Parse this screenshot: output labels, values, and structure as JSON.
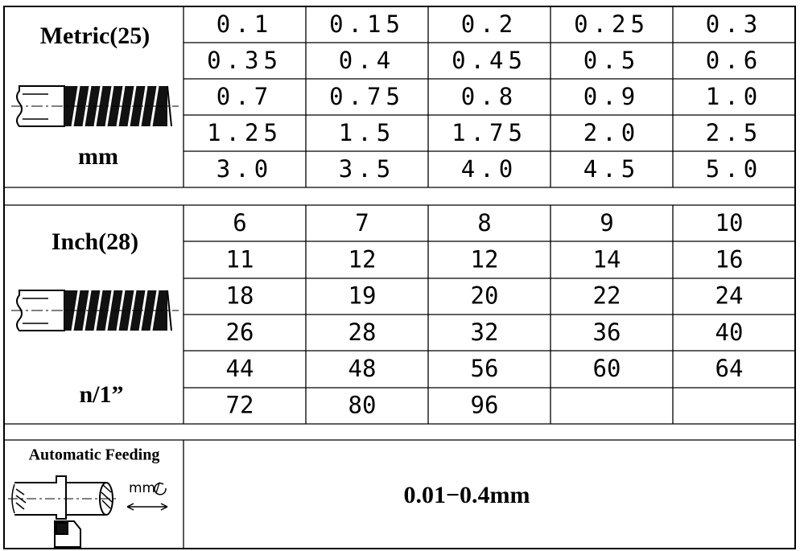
{
  "metric": {
    "label": "Metric(25)",
    "unit": "mm",
    "rows": [
      [
        "0.1",
        "0.15",
        "0.2",
        "0.25",
        "0.3"
      ],
      [
        "0.35",
        "0.4",
        "0.45",
        "0.5",
        "0.6"
      ],
      [
        "0.7",
        "0.75",
        "0.8",
        "0.9",
        "1.0"
      ],
      [
        "1.25",
        "1.5",
        "1.75",
        "2.0",
        "2.5"
      ],
      [
        "3.0",
        "3.5",
        "4.0",
        "4.5",
        "5.0"
      ]
    ]
  },
  "inch": {
    "label": "Inch(28)",
    "unit": "n/1”",
    "rows": [
      [
        "6",
        "7",
        "8",
        "9",
        "10"
      ],
      [
        "11",
        "12",
        "12",
        "14",
        "16"
      ],
      [
        "18",
        "19",
        "20",
        "22",
        "24"
      ],
      [
        "26",
        "28",
        "32",
        "36",
        "40"
      ],
      [
        "44",
        "48",
        "56",
        "60",
        "64"
      ],
      [
        "72",
        "80",
        "96"
      ]
    ]
  },
  "feeding": {
    "label": "Automatic Feeding",
    "icon_label": "mm/",
    "range": "0.01−0.4mm"
  }
}
